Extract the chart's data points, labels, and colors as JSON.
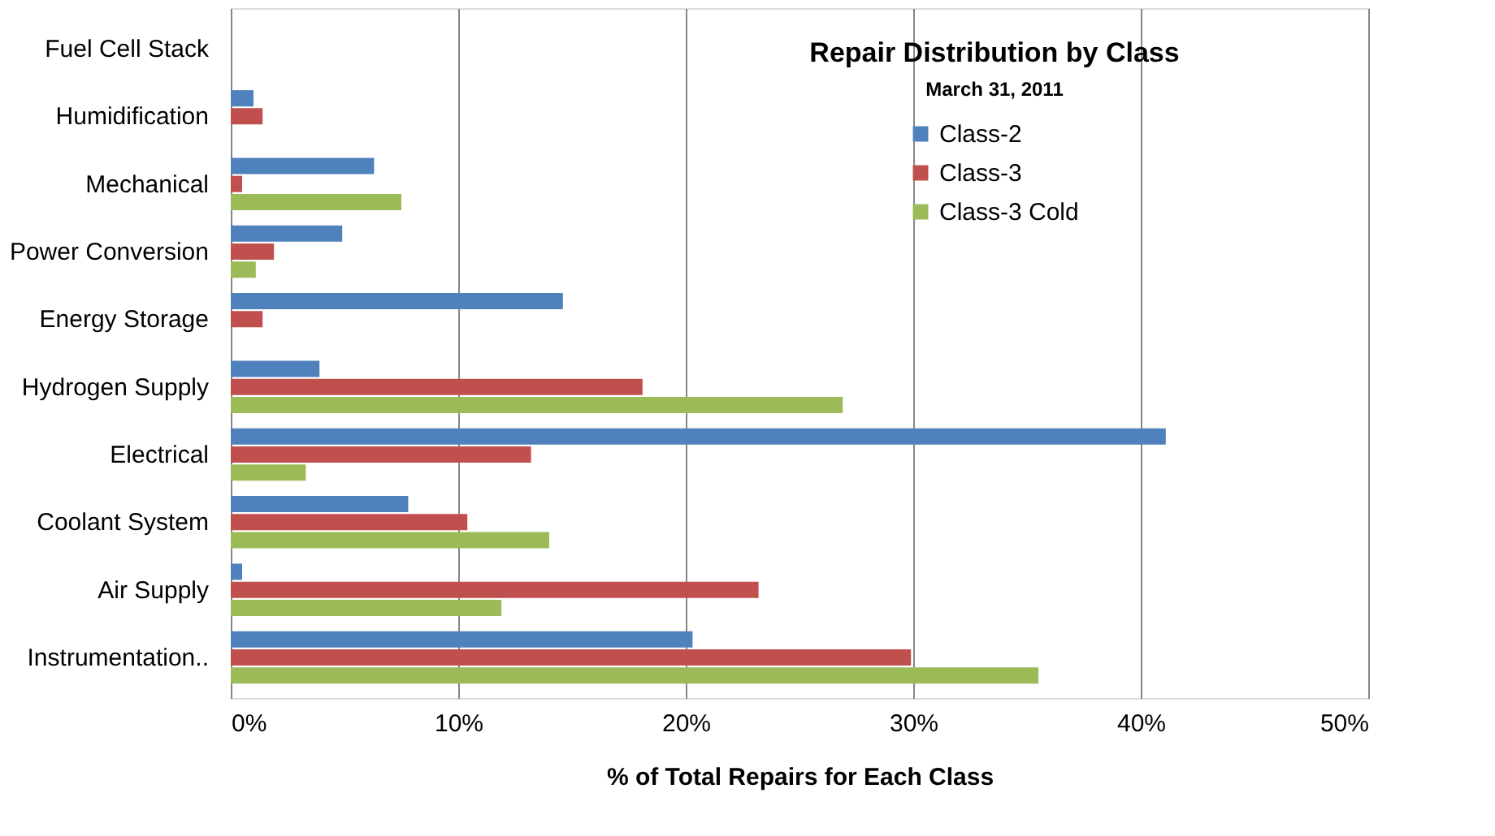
{
  "chart_data": {
    "type": "bar",
    "orientation": "horizontal",
    "title": "Repair Distribution  by Class",
    "subtitle": "March 31, 2011",
    "xlabel": "% of Total Repairs for Each Class",
    "categories": [
      "Fuel Cell Stack",
      "Humidification",
      "Mechanical",
      "Power Conversion",
      "Energy Storage",
      "Hydrogen Supply",
      "Electrical",
      "Coolant System",
      "Air Supply",
      "Instrumentation.."
    ],
    "series": [
      {
        "name": "Class-2",
        "color": "#4f81bd",
        "values": [
          null,
          1.0,
          6.3,
          4.9,
          14.6,
          3.9,
          41.1,
          7.8,
          0.5,
          20.3
        ]
      },
      {
        "name": "Class-3",
        "color": "#c0504d",
        "values": [
          null,
          1.4,
          0.5,
          1.9,
          1.4,
          18.1,
          13.2,
          10.4,
          23.2,
          29.9
        ]
      },
      {
        "name": "Class-3 Cold",
        "color": "#9bbb59",
        "values": [
          null,
          null,
          7.5,
          1.1,
          null,
          26.9,
          3.3,
          14.0,
          11.9,
          35.5
        ]
      }
    ],
    "xlim": [
      0,
      50
    ],
    "xticks": [
      {
        "value": 0,
        "label": "0%"
      },
      {
        "value": 10,
        "label": "10%"
      },
      {
        "value": 20,
        "label": "20%"
      },
      {
        "value": 30,
        "label": "30%"
      },
      {
        "value": 40,
        "label": "40%"
      },
      {
        "value": 50,
        "label": "50%"
      }
    ],
    "grid": "x",
    "legend": "top right"
  }
}
